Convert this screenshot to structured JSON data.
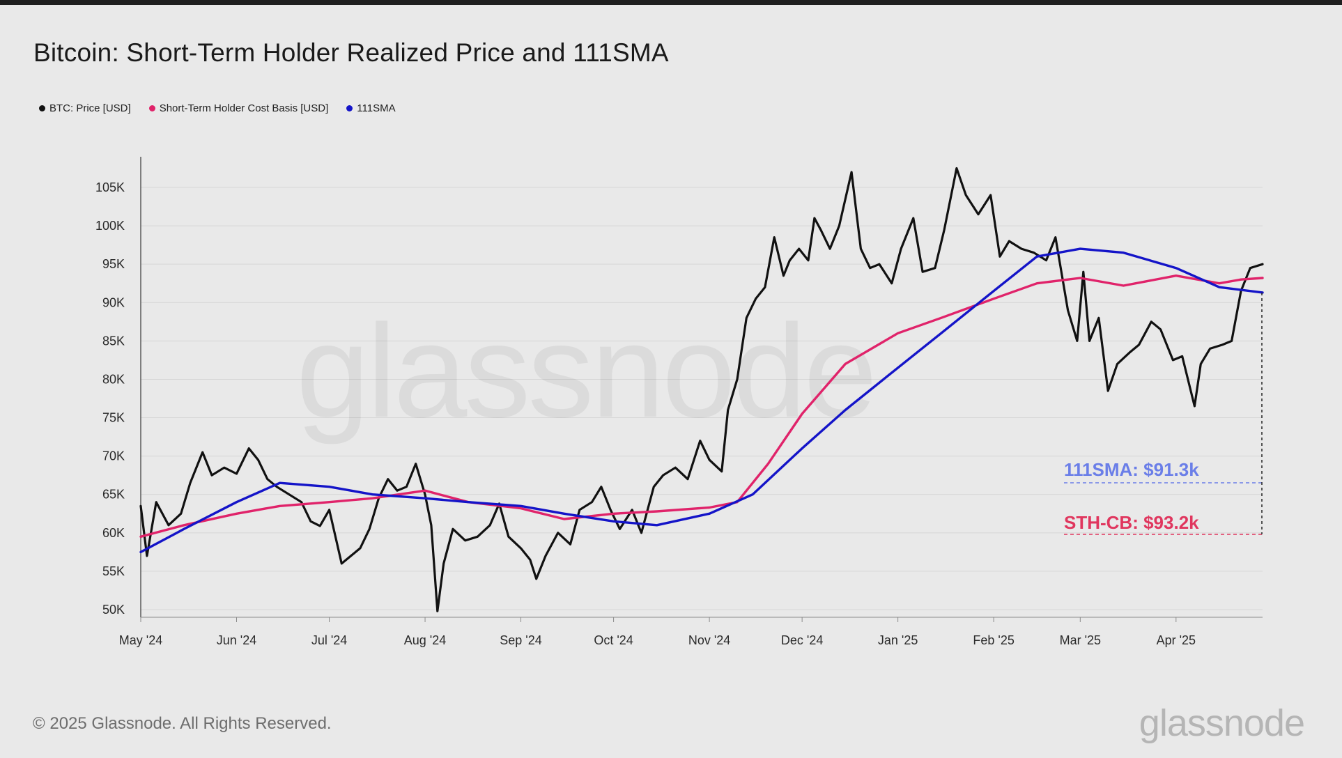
{
  "title": "Bitcoin: Short-Term Holder Realized Price and 111SMA",
  "footer": "© 2025 Glassnode. All Rights Reserved.",
  "brand": "glassnode",
  "watermark": "glassnode",
  "colors": {
    "background": "#e9e9e9",
    "price": "#111111",
    "sth_cb": "#e0236a",
    "sma": "#1414c8",
    "sma_annotation": "#6a7ee8",
    "sth_annotation": "#e0365e"
  },
  "legend": [
    {
      "label": "BTC: Price [USD]",
      "color": "#111111"
    },
    {
      "label": "Short-Term Holder Cost Basis [USD]",
      "color": "#e0236a"
    },
    {
      "label": "111SMA",
      "color": "#1414c8"
    }
  ],
  "annotations": {
    "sma": "111SMA: $91.3k",
    "sth": "STH-CB: $93.2k"
  },
  "chart_data": {
    "type": "line",
    "title": "Bitcoin: Short-Term Holder Realized Price and 111SMA",
    "x_tick_labels": [
      "May '24",
      "Jun '24",
      "Jul '24",
      "Aug '24",
      "Sep '24",
      "Oct '24",
      "Nov '24",
      "Dec '24",
      "Jan '25",
      "Feb '25",
      "Mar '25",
      "Apr '25"
    ],
    "y_tick_labels": [
      "50K",
      "55K",
      "60K",
      "65K",
      "70K",
      "75K",
      "80K",
      "85K",
      "90K",
      "95K",
      "100K",
      "105K"
    ],
    "ylim": [
      49000,
      108000
    ],
    "xlim": [
      "2024-05-01",
      "2025-04-29"
    ],
    "grid": true,
    "legend_position": "top-left",
    "series": [
      {
        "name": "BTC: Price [USD]",
        "x": [
          "2024-05-01",
          "2024-05-03",
          "2024-05-06",
          "2024-05-10",
          "2024-05-14",
          "2024-05-17",
          "2024-05-21",
          "2024-05-24",
          "2024-05-28",
          "2024-06-01",
          "2024-06-05",
          "2024-06-08",
          "2024-06-11",
          "2024-06-14",
          "2024-06-18",
          "2024-06-22",
          "2024-06-25",
          "2024-06-28",
          "2024-07-01",
          "2024-07-05",
          "2024-07-08",
          "2024-07-11",
          "2024-07-14",
          "2024-07-17",
          "2024-07-20",
          "2024-07-23",
          "2024-07-26",
          "2024-07-29",
          "2024-08-01",
          "2024-08-03",
          "2024-08-05",
          "2024-08-07",
          "2024-08-10",
          "2024-08-14",
          "2024-08-18",
          "2024-08-22",
          "2024-08-25",
          "2024-08-28",
          "2024-09-01",
          "2024-09-04",
          "2024-09-06",
          "2024-09-09",
          "2024-09-13",
          "2024-09-17",
          "2024-09-20",
          "2024-09-24",
          "2024-09-27",
          "2024-09-30",
          "2024-10-03",
          "2024-10-07",
          "2024-10-10",
          "2024-10-14",
          "2024-10-17",
          "2024-10-21",
          "2024-10-25",
          "2024-10-29",
          "2024-11-01",
          "2024-11-05",
          "2024-11-07",
          "2024-11-10",
          "2024-11-13",
          "2024-11-16",
          "2024-11-19",
          "2024-11-22",
          "2024-11-25",
          "2024-11-27",
          "2024-11-30",
          "2024-12-03",
          "2024-12-05",
          "2024-12-07",
          "2024-12-10",
          "2024-12-13",
          "2024-12-17",
          "2024-12-20",
          "2024-12-23",
          "2024-12-26",
          "2024-12-30",
          "2025-01-02",
          "2025-01-06",
          "2025-01-09",
          "2025-01-13",
          "2025-01-16",
          "2025-01-20",
          "2025-01-23",
          "2025-01-27",
          "2025-01-31",
          "2025-02-03",
          "2025-02-06",
          "2025-02-10",
          "2025-02-14",
          "2025-02-18",
          "2025-02-21",
          "2025-02-25",
          "2025-02-28",
          "2025-03-02",
          "2025-03-04",
          "2025-03-07",
          "2025-03-10",
          "2025-03-13",
          "2025-03-17",
          "2025-03-20",
          "2025-03-24",
          "2025-03-27",
          "2025-03-31",
          "2025-04-03",
          "2025-04-07",
          "2025-04-09",
          "2025-04-12",
          "2025-04-16",
          "2025-04-19",
          "2025-04-22",
          "2025-04-25",
          "2025-04-29"
        ],
        "y": [
          63500,
          57000,
          64000,
          61000,
          62500,
          66500,
          70500,
          67500,
          68500,
          67700,
          71000,
          69500,
          67000,
          66000,
          65000,
          64000,
          61500,
          60900,
          63000,
          56000,
          57000,
          58000,
          60500,
          64500,
          67000,
          65500,
          66000,
          69000,
          65000,
          61000,
          49800,
          56000,
          60500,
          59000,
          59500,
          61000,
          63800,
          59500,
          58000,
          56500,
          54000,
          57000,
          60000,
          58500,
          63000,
          64000,
          66000,
          63000,
          60500,
          63000,
          60000,
          66000,
          67500,
          68500,
          67000,
          72000,
          69500,
          68000,
          76000,
          80000,
          88000,
          90500,
          92000,
          98500,
          93500,
          95500,
          97000,
          95500,
          101000,
          99500,
          97000,
          100000,
          107000,
          97000,
          94500,
          95000,
          92500,
          97000,
          101000,
          94000,
          94500,
          99500,
          107500,
          104000,
          101500,
          104000,
          96000,
          98000,
          97000,
          96500,
          95500,
          98500,
          89000,
          85000,
          94000,
          85000,
          88000,
          78500,
          82000,
          83500,
          84500,
          87500,
          86500,
          82500,
          83000,
          76500,
          82000,
          84000,
          84500,
          85000,
          91500,
          94500,
          95000
        ]
      },
      {
        "name": "Short-Term Holder Cost Basis [USD]",
        "x": [
          "2024-05-01",
          "2024-05-15",
          "2024-06-01",
          "2024-06-15",
          "2024-07-01",
          "2024-07-15",
          "2024-08-01",
          "2024-08-15",
          "2024-09-01",
          "2024-09-15",
          "2024-10-01",
          "2024-10-15",
          "2024-11-01",
          "2024-11-10",
          "2024-11-20",
          "2024-12-01",
          "2024-12-15",
          "2025-01-01",
          "2025-01-15",
          "2025-02-01",
          "2025-02-15",
          "2025-03-01",
          "2025-03-15",
          "2025-04-01",
          "2025-04-15",
          "2025-04-22",
          "2025-04-29"
        ],
        "y": [
          59500,
          61000,
          62500,
          63500,
          64000,
          64500,
          65500,
          64000,
          63200,
          61800,
          62500,
          62800,
          63300,
          64000,
          69000,
          75500,
          82000,
          86000,
          88000,
          90500,
          92500,
          93200,
          92200,
          93500,
          92500,
          93000,
          93200
        ]
      },
      {
        "name": "111SMA",
        "x": [
          "2024-05-01",
          "2024-05-15",
          "2024-06-01",
          "2024-06-15",
          "2024-07-01",
          "2024-07-15",
          "2024-08-01",
          "2024-08-15",
          "2024-09-01",
          "2024-09-15",
          "2024-10-01",
          "2024-10-15",
          "2024-11-01",
          "2024-11-15",
          "2024-12-01",
          "2024-12-15",
          "2025-01-01",
          "2025-01-15",
          "2025-02-01",
          "2025-02-15",
          "2025-03-01",
          "2025-03-15",
          "2025-04-01",
          "2025-04-15",
          "2025-04-29"
        ],
        "y": [
          57500,
          60500,
          64000,
          66500,
          66000,
          65000,
          64500,
          64000,
          63500,
          62500,
          61500,
          61000,
          62500,
          65000,
          71000,
          76000,
          81500,
          86000,
          91500,
          96000,
          97000,
          96500,
          94500,
          92000,
          91300
        ]
      }
    ]
  }
}
